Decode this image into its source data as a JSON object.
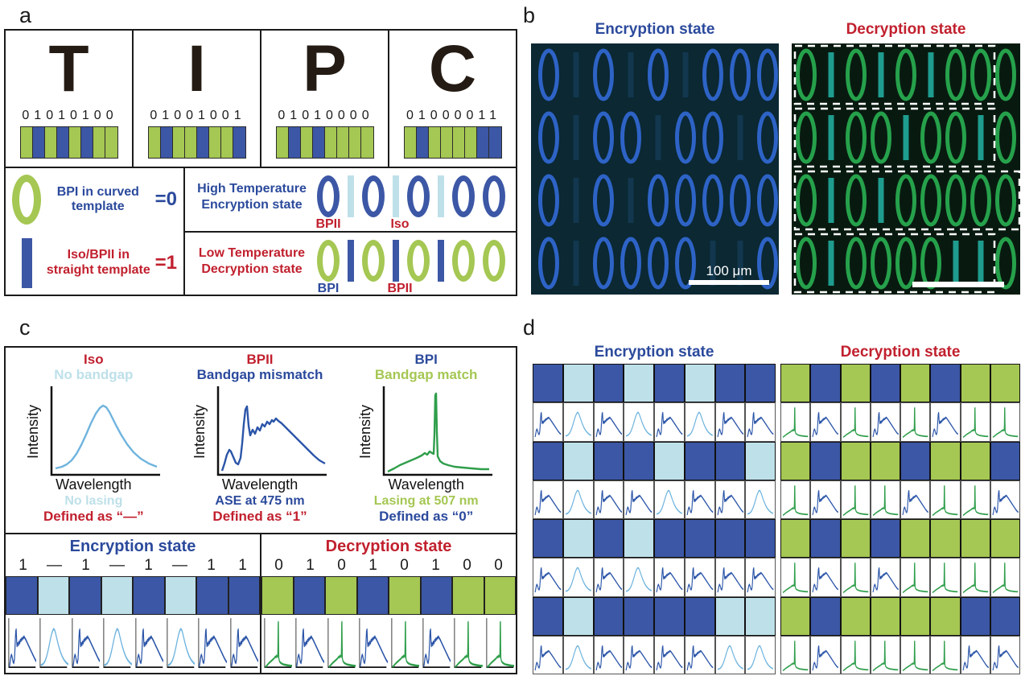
{
  "figure": {
    "panel_labels": {
      "a": "a",
      "b": "b",
      "c": "c",
      "d": "d"
    }
  },
  "colors": {
    "bit0_green": "#a5c753",
    "bit1_blue": "#3c57a5",
    "iso_light_blue": "#bee0e9",
    "title_blue": "#2b4a9c",
    "title_red": "#c1202e",
    "iso_curve": "#6fb4de",
    "ase_curve": "#2b55a8",
    "lasing_curve": "#2f9e4b",
    "enc_micro_bg": "#0b2833",
    "enc_micro_ellipse": "#2e63c6",
    "enc_micro_bar": "#12374e",
    "dec_micro_bg": "#081a10",
    "dec_micro_ellipse": "#26a14b",
    "dec_micro_bar": "#1e9c8e"
  },
  "panel_a": {
    "letters": [
      {
        "char": "T",
        "binary": "01010100"
      },
      {
        "char": "I",
        "binary": "01001001"
      },
      {
        "char": "P",
        "binary": "01010000"
      },
      {
        "char": "C",
        "binary": "01000011"
      }
    ],
    "legend": {
      "zero": {
        "text": "BPI in curved template",
        "eq": "=0",
        "color": "blue"
      },
      "one": {
        "text": "Iso/BPII in straight template",
        "eq": "=1",
        "color": "red"
      }
    },
    "high_temp": {
      "line1": "High Temperature",
      "line2": "Encryption state",
      "sequence": "01010100",
      "ann1": "BPII",
      "ann1_color": "red",
      "ann2": "Iso",
      "ann2_color": "red"
    },
    "low_temp": {
      "line1": "Low Temperature",
      "line2": "Decryption state",
      "sequence": "01010100",
      "ann1": "BPI",
      "ann1_color": "blue",
      "ann2": "BPII",
      "ann2_color": "red"
    }
  },
  "panel_b": {
    "encryption_title": "Encryption state",
    "decryption_title": "Decryption state",
    "scale_bar_label": "100 μm",
    "row_patterns": [
      "01010100",
      "01001001",
      "01010000",
      "01000011"
    ]
  },
  "panel_c": {
    "spectra": [
      {
        "title": "Iso",
        "subtitle": "No bandgap",
        "ylabel": "Intensity",
        "xlabel": "Wavelength",
        "result": "No lasing",
        "defined": "Defined as “—”",
        "curve": "iso",
        "title_color": "red",
        "subtitle_color": "lightblue",
        "result_color": "lightblue",
        "defined_color": "red"
      },
      {
        "title": "BPII",
        "subtitle": "Bandgap mismatch",
        "ylabel": "Intensity",
        "xlabel": "Wavelength",
        "result": "ASE at 475 nm",
        "defined": "Defined as “1”",
        "curve": "ase",
        "title_color": "red",
        "subtitle_color": "blue",
        "result_color": "blue",
        "defined_color": "red"
      },
      {
        "title": "BPI",
        "subtitle": "Bandgap match",
        "ylabel": "Intensity",
        "xlabel": "Wavelength",
        "result": "Lasing at 507 nm",
        "defined": "Defined as “0”",
        "curve": "lasing",
        "title_color": "blue",
        "subtitle_color": "green",
        "result_color": "green",
        "defined_color": "blue"
      }
    ],
    "encryption": {
      "title": "Encryption state",
      "readout": [
        "1",
        "—",
        "1",
        "—",
        "1",
        "—",
        "1",
        "1"
      ],
      "cells": [
        "ase",
        "iso",
        "ase",
        "iso",
        "ase",
        "iso",
        "ase",
        "ase"
      ]
    },
    "decryption": {
      "title": "Decryption state",
      "readout": [
        "0",
        "1",
        "0",
        "1",
        "0",
        "1",
        "0",
        "0"
      ],
      "cells": [
        "lasing",
        "ase",
        "lasing",
        "ase",
        "lasing",
        "ase",
        "lasing",
        "lasing"
      ]
    }
  },
  "panel_d": {
    "encryption": {
      "title": "Encryption state",
      "rows": [
        "01010100",
        "01001001",
        "01010000",
        "01000011"
      ],
      "bit_map": {
        "0": "ase",
        "1": "iso"
      }
    },
    "decryption": {
      "title": "Decryption state",
      "rows": [
        "01010100",
        "01001001",
        "01010000",
        "01000011"
      ],
      "bit_map": {
        "0": "lasing",
        "1": "ase"
      }
    }
  }
}
